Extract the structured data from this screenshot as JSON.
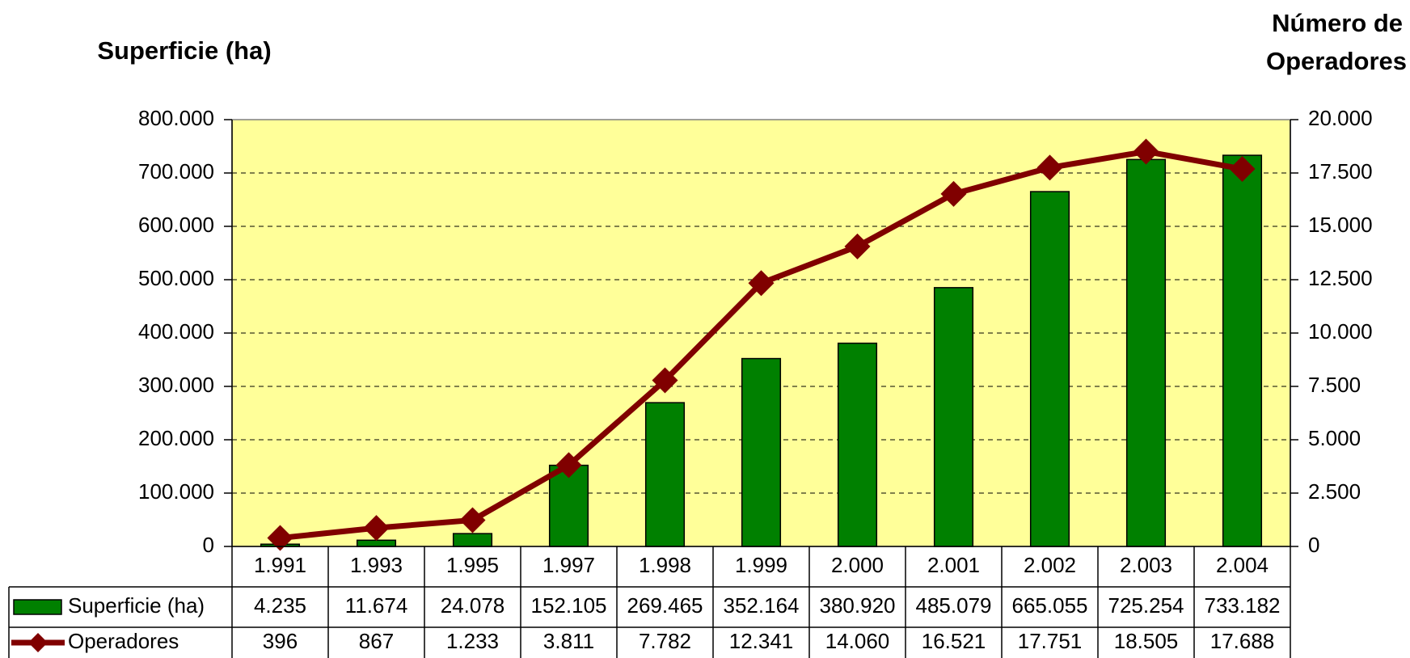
{
  "chart_data": {
    "type": "bar_line",
    "y_label": "Superficie (ha)",
    "y2_label": [
      "Número de",
      "Operadores"
    ],
    "categories": [
      "1.991",
      "1.993",
      "1.995",
      "1.997",
      "1.998",
      "1.999",
      "2.000",
      "2.001",
      "2.002",
      "2.003",
      "2.004"
    ],
    "series": [
      {
        "name": "Superficie (ha)",
        "type": "bar",
        "color": "#008000",
        "values": [
          4235,
          11674,
          24078,
          152105,
          269465,
          352164,
          380920,
          485079,
          665055,
          725254,
          733182
        ],
        "value_labels": [
          "4.235",
          "11.674",
          "24.078",
          "152.105",
          "269.465",
          "352.164",
          "380.920",
          "485.079",
          "665.055",
          "725.254",
          "733.182"
        ]
      },
      {
        "name": "Operadores",
        "type": "line",
        "axis": "y2",
        "color": "#800000",
        "values": [
          396,
          867,
          1233,
          3811,
          7782,
          12341,
          14060,
          16521,
          17751,
          18505,
          17688
        ],
        "value_labels": [
          "396",
          "867",
          "1.233",
          "3.811",
          "7.782",
          "12.341",
          "14.060",
          "16.521",
          "17.751",
          "18.505",
          "17.688"
        ]
      }
    ],
    "ylim": [
      0,
      800000
    ],
    "yticks": [
      0,
      {
        "value": 100000,
        "label": "100.000"
      },
      {
        "value": 200000,
        "label": "200.000"
      },
      {
        "value": 300000,
        "label": "300.000"
      },
      {
        "value": 400000,
        "label": "400.000"
      },
      {
        "value": 500000,
        "label": "500.000"
      },
      {
        "value": 600000,
        "label": "600.000"
      },
      {
        "value": 700000,
        "label": "700.000"
      },
      {
        "value": 800000,
        "label": "800.000"
      }
    ],
    "y2lim": [
      0,
      20000
    ],
    "y2ticks": [
      0,
      {
        "value": 2500,
        "label": "2.500"
      },
      {
        "value": 5000,
        "label": "5.000"
      },
      {
        "value": 7500,
        "label": "7.500"
      },
      {
        "value": 10000,
        "label": "10.000"
      },
      {
        "value": 12500,
        "label": "12.500"
      },
      {
        "value": 15000,
        "label": "15.000"
      },
      {
        "value": 17500,
        "label": "17.500"
      },
      {
        "value": 20000,
        "label": "20.000"
      }
    ],
    "grid": true,
    "plot_background": "#ffff99"
  }
}
